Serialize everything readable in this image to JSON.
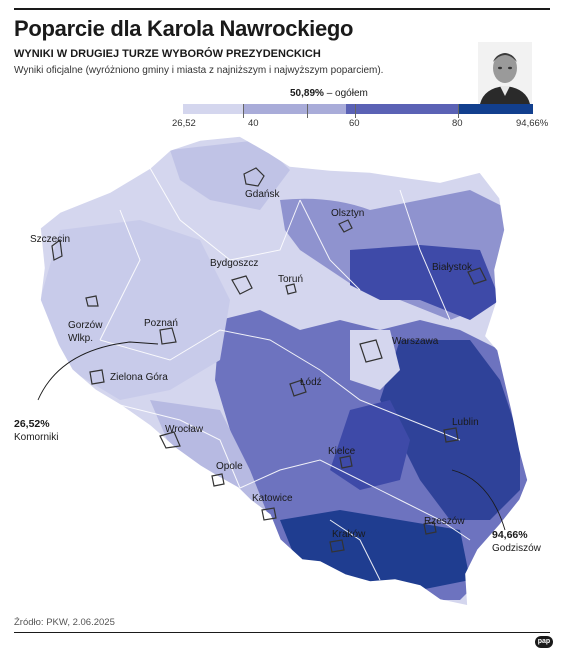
{
  "header": {
    "title": "Poparcie dla Karola Nawrockiego",
    "subtitle": "WYNIKI W DRUGIEJ TURZE WYBORÓW PREZYDENCKICH",
    "description": "Wyniki oficjalne (wyróżniono gminy i miasta z najniższym i najwyższym poparciem)."
  },
  "overall": {
    "value": "50,89%",
    "label": " – ogółem"
  },
  "legend": {
    "ticks": [
      "26,52",
      "40",
      "60",
      "80",
      "94,66%"
    ],
    "colors": [
      "#d4d6ee",
      "#a9acd9",
      "#5b62b5",
      "#123f8e"
    ]
  },
  "cities": [
    "Gdańsk",
    "Olsztyn",
    "Szczecin",
    "Bydgoszcz",
    "Toruń",
    "Białystok",
    "Gorzów\nWlkp.",
    "Poznań",
    "Warszawa",
    "Zielona Góra",
    "Łódź",
    "Lublin",
    "Wrocław",
    "Kielce",
    "Opole",
    "Katowice",
    "Rzeszów",
    "Kraków"
  ],
  "callouts": {
    "low": {
      "value": "26,52%",
      "name": "Komorniki"
    },
    "high": {
      "value": "94,66%",
      "name": "Godziszów"
    }
  },
  "footer": {
    "source": "Źródło: PKW, 2.06.2025",
    "logo": "pap"
  }
}
